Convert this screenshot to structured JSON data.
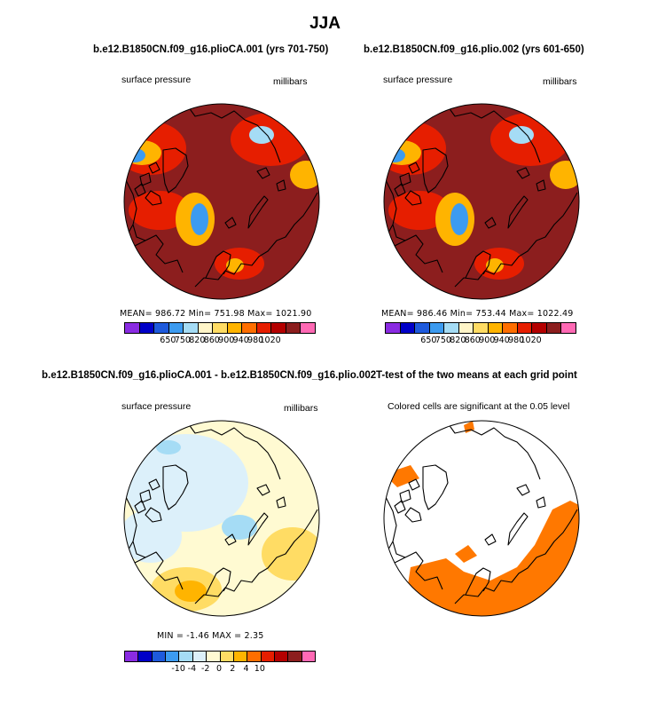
{
  "title": "JJA",
  "chart_data": [
    {
      "type": "heatmap",
      "id": "panel-top-left",
      "title": "b.e12.B1850CN.f09_g16.plioCA.001 (yrs 701-750)",
      "left_label": "surface pressure",
      "right_label": "millibars",
      "stats": {
        "mean": "986.72",
        "min": "751.98",
        "max": "1021.90"
      },
      "stats_text": "MEAN= 986.72   Min= 751.98   Max= 1021.90",
      "colorbar_colors": [
        "#8a2be2",
        "#0000c8",
        "#1e5adc",
        "#3c9bf0",
        "#a5dcf5",
        "#fff5c8",
        "#ffdc64",
        "#ffb400",
        "#ff6e00",
        "#e61e00",
        "#b40000",
        "#8c1e1e",
        "#ff69b4"
      ],
      "colorbar_ticks": [
        "650",
        "750",
        "820",
        "860",
        "900",
        "940",
        "980",
        "1020"
      ]
    },
    {
      "type": "heatmap",
      "id": "panel-top-right",
      "title": "b.e12.B1850CN.f09_g16.plio.002 (yrs 601-650)",
      "left_label": "surface pressure",
      "right_label": "millibars",
      "stats": {
        "mean": "986.46",
        "min": "753.44",
        "max": "1022.49"
      },
      "stats_text": "MEAN= 986.46   Min= 753.44   Max= 1022.49",
      "colorbar_colors": [
        "#8a2be2",
        "#0000c8",
        "#1e5adc",
        "#3c9bf0",
        "#a5dcf5",
        "#fff5c8",
        "#ffdc64",
        "#ffb400",
        "#ff6e00",
        "#e61e00",
        "#b40000",
        "#8c1e1e",
        "#ff69b4"
      ],
      "colorbar_ticks": [
        "650",
        "750",
        "820",
        "860",
        "900",
        "940",
        "980",
        "1020"
      ]
    },
    {
      "type": "heatmap",
      "id": "panel-bottom-left",
      "title": "b.e12.B1850CN.f09_g16.plioCA.001 - b.e12.B1850CN.f09_g16.plio.002",
      "left_label": "surface pressure",
      "right_label": "millibars",
      "stats": {
        "min": "-1.46",
        "max": "2.35"
      },
      "stats_text": "MIN =   -1.46  MAX =    2.35",
      "colorbar_colors": [
        "#8a2be2",
        "#0000c8",
        "#1e5adc",
        "#3c9bf0",
        "#a5dcf5",
        "#dcf0fa",
        "#fffad2",
        "#ffdc64",
        "#ffb400",
        "#ff6e00",
        "#e61e00",
        "#b40000",
        "#8c1e1e",
        "#ff69b4"
      ],
      "colorbar_ticks": [
        "-10",
        "-4",
        "-2",
        "0",
        "2",
        "4",
        "10"
      ]
    },
    {
      "type": "heatmap",
      "id": "panel-bottom-right",
      "title": "T-test of the two means at each grid point",
      "left_label": "Colored cells are significant at the 0.05 level"
    }
  ]
}
